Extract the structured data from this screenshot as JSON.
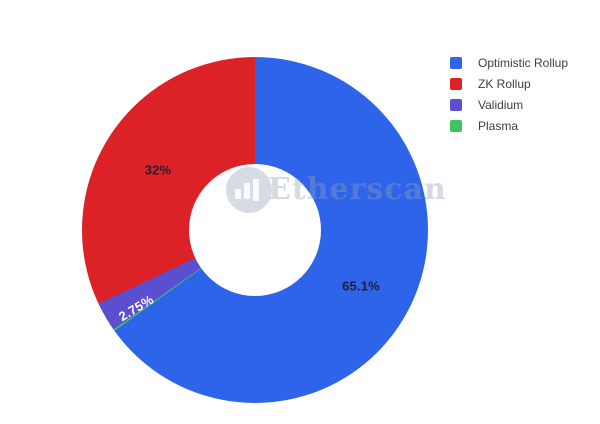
{
  "chart_data": {
    "type": "pie",
    "title": "",
    "labels": [
      "Optimistic Rollup",
      "ZK Rollup",
      "Validium",
      "Plasma"
    ],
    "values": [
      65.1,
      32,
      2.75,
      0.15
    ],
    "colors": [
      "#2E64E9",
      "#DC2227",
      "#5A4FCF",
      "#41C262"
    ],
    "hole_ratio": 0.38,
    "start_angle_deg": 0,
    "direction": "clockwise",
    "draw_order": [
      0,
      3,
      2,
      1
    ],
    "slice_labels": [
      {
        "text": "65.1%",
        "slice": "Optimistic Rollup"
      },
      {
        "text": "32%",
        "slice": "ZK Rollup"
      },
      {
        "text": "2.75%",
        "slice": "Validium"
      }
    ],
    "legend_position": "top-right",
    "grid": false
  },
  "legend": {
    "items": [
      {
        "label": "Optimistic Rollup",
        "color": "#2E64E9"
      },
      {
        "label": "ZK Rollup",
        "color": "#DC2227"
      },
      {
        "label": "Validium",
        "color": "#5A4FCF"
      },
      {
        "label": "Plasma",
        "color": "#41C262"
      }
    ]
  },
  "watermark": {
    "text": "Etherscan",
    "logo": "etherscan-logo"
  }
}
